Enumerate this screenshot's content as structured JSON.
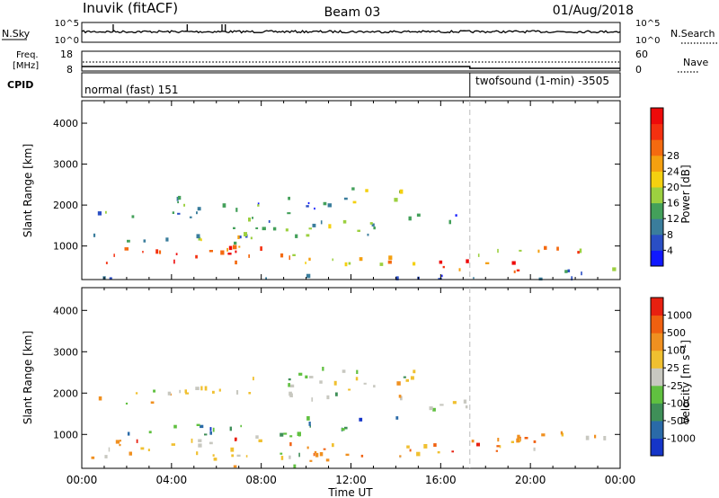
{
  "header": {
    "station": "Inuvik (fitACF)",
    "beam": "Beam 03",
    "date": "01/Aug/2018"
  },
  "nsky_panel": {
    "left_label": "N.Sky",
    "left_ticks": [
      "10^5",
      "10^0"
    ],
    "right_label": "N.Search",
    "right_ticks": [
      "10^5",
      "10^0"
    ]
  },
  "freq_panel": {
    "left_label_1": "Freq.",
    "left_label_2": "[MHz]",
    "left_ticks": [
      "18",
      "8"
    ],
    "right_label": "Nave",
    "right_ticks": [
      "60",
      "0"
    ]
  },
  "cpid_panel": {
    "label": "CPID",
    "mode_1": "normal (fast) 151",
    "mode_2": "twofsound (1-min) -3505",
    "mode_switch_hour": 17.3
  },
  "chart_data": [
    {
      "type": "heatmap",
      "title": "",
      "quantity": "Power",
      "ylabel": "Slant Range [km]",
      "xlabel": "",
      "xlim": [
        0,
        24
      ],
      "ylim": [
        180,
        4550
      ],
      "yticks": [
        1000,
        2000,
        3000,
        4000
      ],
      "colorbar": {
        "label": "Power [dB]",
        "ticks": [
          "4",
          "8",
          "12",
          "16",
          "20",
          "24",
          "28"
        ],
        "colors": [
          "#1018ff",
          "#2a4ec4",
          "#3a7d9c",
          "#43a05a",
          "#9cd040",
          "#f4d010",
          "#f4a010",
          "#f46a10",
          "#f43010",
          "#ee0a0a"
        ]
      },
      "scatter_bands": [
        {
          "t0": 0.3,
          "t1": 2.5,
          "r0": 1650,
          "r1": 1900,
          "level": 2
        },
        {
          "t0": 2.5,
          "t1": 5.0,
          "r0": 1700,
          "r1": 2200,
          "level": 3
        },
        {
          "t0": 5.0,
          "t1": 8.0,
          "r0": 1600,
          "r1": 2050,
          "level": 2
        },
        {
          "t0": 9.0,
          "t1": 11.8,
          "r0": 1800,
          "r1": 2300,
          "level": 2
        },
        {
          "t0": 12.0,
          "t1": 14.5,
          "r0": 2000,
          "r1": 2400,
          "level": 4
        },
        {
          "t0": 14.5,
          "t1": 17.2,
          "r0": 1500,
          "r1": 1800,
          "level": 2
        },
        {
          "t0": 6.0,
          "t1": 14.0,
          "r0": 1150,
          "r1": 1600,
          "level": 3
        },
        {
          "t0": 0.3,
          "t1": 8.0,
          "r0": 1050,
          "r1": 1300,
          "level": 4
        },
        {
          "t0": 0.3,
          "t1": 9.0,
          "r0": 560,
          "r1": 1000,
          "level": 8
        },
        {
          "t0": 9.0,
          "t1": 16.0,
          "r0": 550,
          "r1": 850,
          "level": 5
        },
        {
          "t0": 15.5,
          "t1": 19.5,
          "r0": 350,
          "r1": 700,
          "level": 8
        },
        {
          "t0": 17.5,
          "t1": 23.0,
          "r0": 750,
          "r1": 1000,
          "level": 6
        },
        {
          "t0": 19.0,
          "t1": 23.8,
          "r0": 300,
          "r1": 450,
          "level": 3
        },
        {
          "t0": 0.0,
          "t1": 24.0,
          "r0": 190,
          "r1": 270,
          "level": 1
        }
      ]
    },
    {
      "type": "heatmap",
      "title": "",
      "quantity": "Velocity",
      "ylabel": "Slant Range [km]",
      "xlabel": "Time UT",
      "xlim": [
        0,
        24
      ],
      "ylim": [
        180,
        4550
      ],
      "yticks": [
        1000,
        2000,
        3000,
        4000
      ],
      "xtick_labels": [
        "00:00",
        "04:00",
        "08:00",
        "12:00",
        "16:00",
        "20:00",
        "00:00"
      ],
      "xtick_hours": [
        0,
        4,
        8,
        12,
        16,
        20,
        24
      ],
      "colorbar": {
        "label": "Velocity [m s^-1]",
        "ticks": [
          "1000",
          "500",
          "100",
          "25",
          "-25",
          "-100",
          "-500",
          "-1000"
        ],
        "colors": [
          "#1535c8",
          "#2a6aa8",
          "#3f8f58",
          "#60c040",
          "#c8c8c0",
          "#f0c030",
          "#f09020",
          "#f06010",
          "#e82010"
        ]
      },
      "scatter_bands": [
        {
          "t0": 0.3,
          "t1": 5.0,
          "r0": 1700,
          "r1": 2100,
          "level": 4
        },
        {
          "t0": 5.0,
          "t1": 8.0,
          "r0": 2000,
          "r1": 2500,
          "level": 4
        },
        {
          "t0": 9.0,
          "t1": 15.0,
          "r0": 1800,
          "r1": 2600,
          "level": 4
        },
        {
          "t0": 15.0,
          "t1": 17.5,
          "r0": 1400,
          "r1": 1800,
          "level": 4
        },
        {
          "t0": 0.3,
          "t1": 10.0,
          "r0": 950,
          "r1": 1250,
          "level": 2
        },
        {
          "t0": 10.0,
          "t1": 14.0,
          "r0": 1050,
          "r1": 1400,
          "level": 2
        },
        {
          "t0": 0.3,
          "t1": 8.0,
          "r0": 400,
          "r1": 950,
          "level": 6
        },
        {
          "t0": 8.0,
          "t1": 16.0,
          "r0": 450,
          "r1": 800,
          "level": 6
        },
        {
          "t0": 16.0,
          "t1": 21.0,
          "r0": 500,
          "r1": 900,
          "level": 6
        },
        {
          "t0": 17.5,
          "t1": 23.5,
          "r0": 800,
          "r1": 1100,
          "level": 5
        },
        {
          "t0": 6.0,
          "t1": 12.0,
          "r0": 200,
          "r1": 550,
          "level": 4
        }
      ]
    }
  ]
}
